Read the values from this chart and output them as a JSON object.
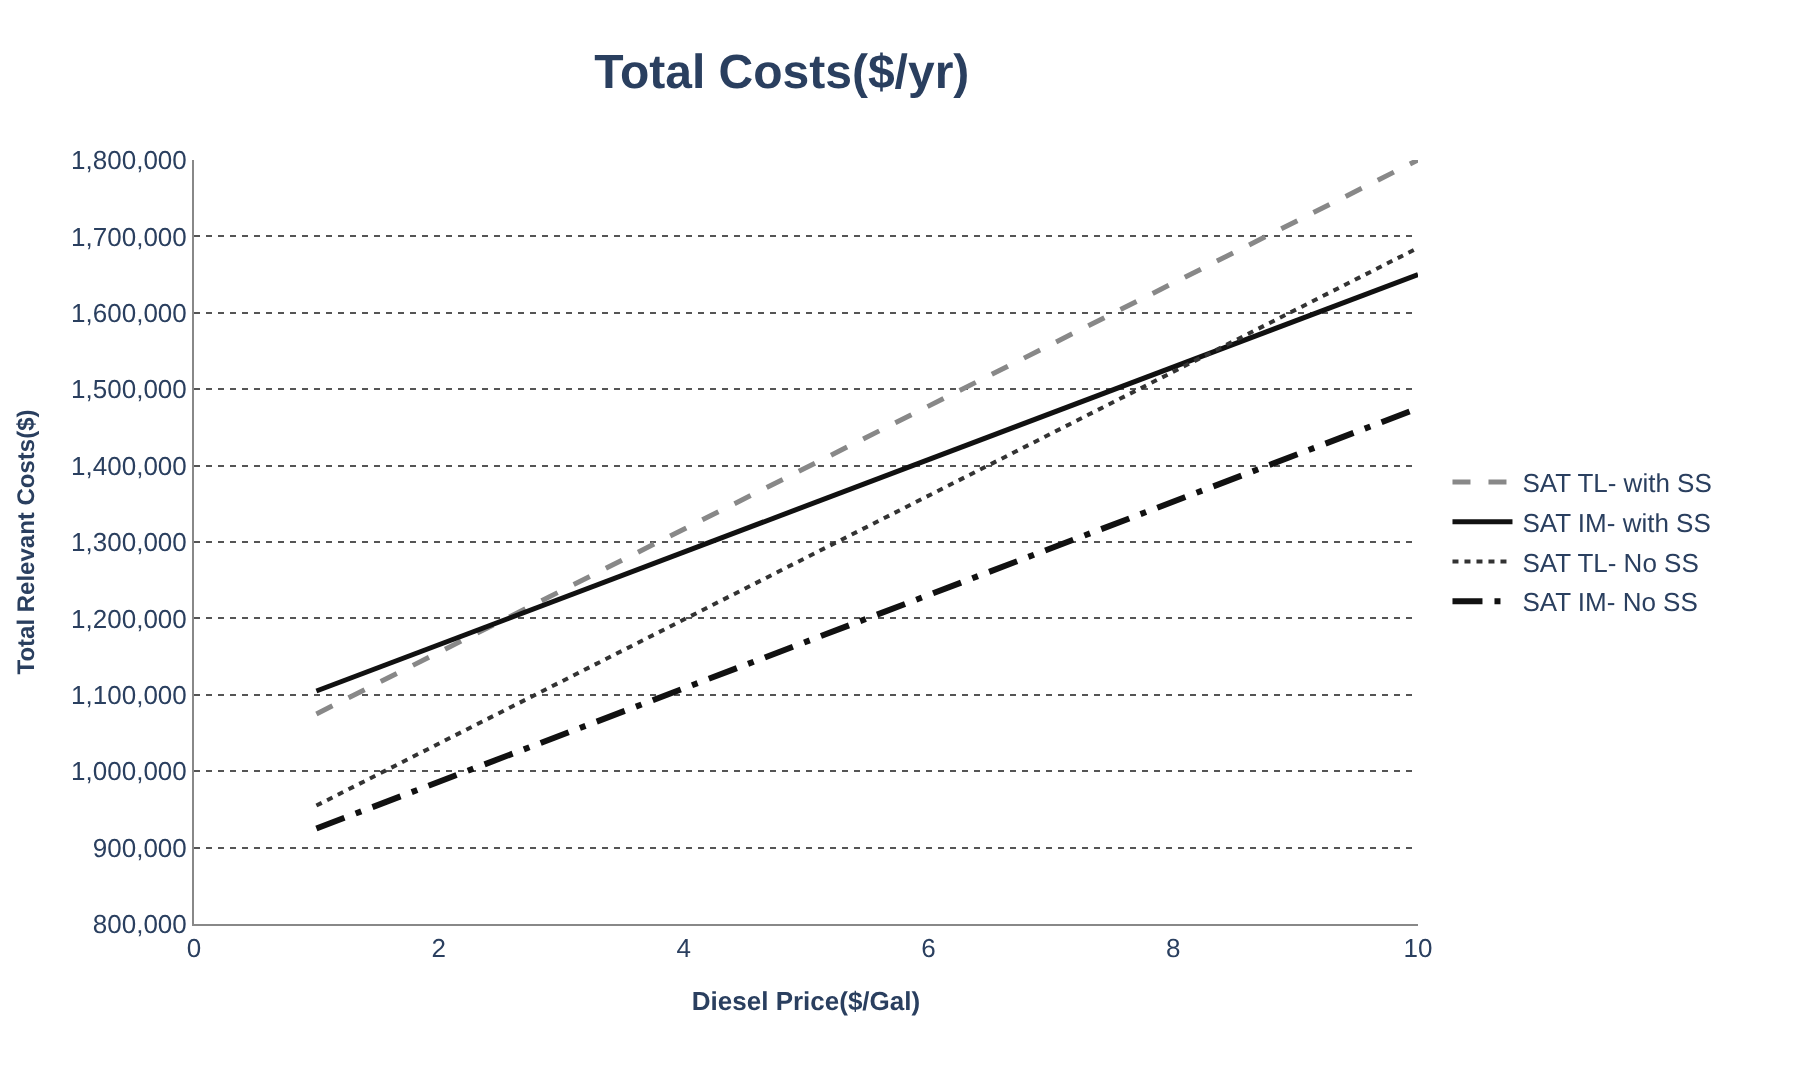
{
  "chart_data": {
    "type": "line",
    "title": "Total Costs($/yr)",
    "xlabel": "Diesel Price($/Gal)",
    "ylabel": "Total Relevant Costs($)",
    "x": [
      1,
      10
    ],
    "xlim": [
      0,
      10
    ],
    "xticks": [
      0,
      2,
      4,
      6,
      8,
      10
    ],
    "ylim": [
      800000,
      1800000
    ],
    "yticks": [
      {
        "value": 800000,
        "label": "800,000"
      },
      {
        "value": 900000,
        "label": "900,000"
      },
      {
        "value": 1000000,
        "label": "1,000,000"
      },
      {
        "value": 1100000,
        "label": "1,100,000"
      },
      {
        "value": 1200000,
        "label": "1,200,000"
      },
      {
        "value": 1300000,
        "label": "1,300,000"
      },
      {
        "value": 1400000,
        "label": "1,400,000"
      },
      {
        "value": 1500000,
        "label": "1,500,000"
      },
      {
        "value": 1600000,
        "label": "1,600,000"
      },
      {
        "value": 1700000,
        "label": "1,700,000"
      },
      {
        "value": 1800000,
        "label": "1,800,000"
      }
    ],
    "grid": "y",
    "legend": "right",
    "marker": "none",
    "series": [
      {
        "name": "SAT TL- with SS",
        "color": "#888888",
        "values": [
          1075000,
          1800000
        ],
        "line_style": "dashed"
      },
      {
        "name": "SAT IM- with SS",
        "color": "#111111",
        "values": [
          1105000,
          1650000
        ],
        "line_style": "solid"
      },
      {
        "name": "SAT TL- No SS",
        "color": "#333333",
        "values": [
          955000,
          1685000
        ],
        "line_style": "dotted"
      },
      {
        "name": "SAT IM- No SS",
        "color": "#111111",
        "values": [
          925000,
          1475000
        ],
        "line_style": "dashdot"
      }
    ]
  }
}
